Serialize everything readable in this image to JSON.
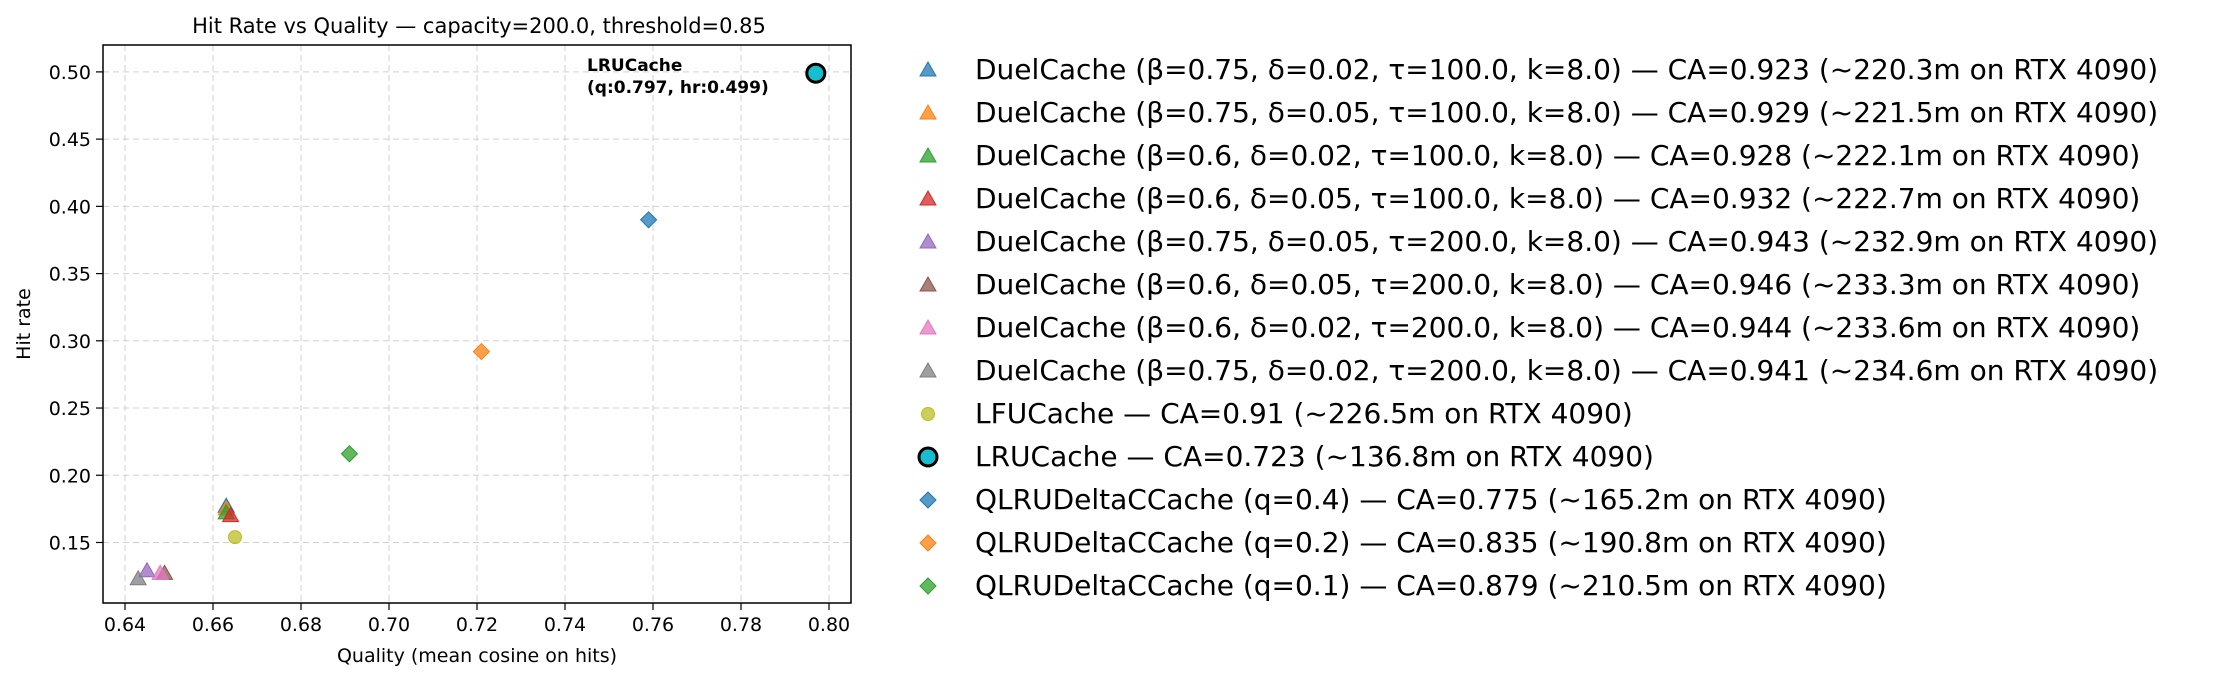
{
  "chart_data": {
    "type": "scatter",
    "title": "Hit Rate vs Quality — capacity=200.0, threshold=0.85",
    "xlabel": "Quality (mean cosine on hits)",
    "ylabel": "Hit rate",
    "xlim": [
      0.635,
      0.805
    ],
    "ylim": [
      0.105,
      0.52
    ],
    "xticks": [
      "0.64",
      "0.66",
      "0.68",
      "0.70",
      "0.72",
      "0.74",
      "0.76",
      "0.78",
      "0.80"
    ],
    "yticks": [
      "0.15",
      "0.20",
      "0.25",
      "0.30",
      "0.35",
      "0.40",
      "0.45",
      "0.50"
    ],
    "grid": true,
    "legend_position": "outside-right",
    "annotation": {
      "line1": "LRUCache",
      "line2": "(q:0.797, hr:0.499)"
    },
    "series": [
      {
        "name": "DuelCache (β=0.75, δ=0.02, τ=100.0, k=8.0) — CA=0.923 (~220.3m on RTX 4090)",
        "marker": "triangle",
        "color": "#1f77b4",
        "x": 0.663,
        "y": 0.177
      },
      {
        "name": "DuelCache (β=0.75, δ=0.05, τ=100.0, k=8.0) — CA=0.929 (~221.5m on RTX 4090)",
        "marker": "triangle",
        "color": "#ff7f0e",
        "x": 0.663,
        "y": 0.175
      },
      {
        "name": "DuelCache (β=0.6, δ=0.02, τ=100.0, k=8.0) — CA=0.928 (~222.1m on RTX 4090)",
        "marker": "triangle",
        "color": "#2ca02c",
        "x": 0.663,
        "y": 0.172
      },
      {
        "name": "DuelCache (β=0.6, δ=0.05, τ=100.0, k=8.0) — CA=0.932 (~222.7m on RTX 4090)",
        "marker": "triangle",
        "color": "#d62728",
        "x": 0.664,
        "y": 0.17
      },
      {
        "name": "DuelCache (β=0.75, δ=0.05, τ=200.0, k=8.0) — CA=0.943 (~232.9m on RTX 4090)",
        "marker": "triangle",
        "color": "#9467bd",
        "x": 0.645,
        "y": 0.129
      },
      {
        "name": "DuelCache (β=0.6, δ=0.05, τ=200.0, k=8.0) — CA=0.946 (~233.3m on RTX 4090)",
        "marker": "triangle",
        "color": "#8c564b",
        "x": 0.649,
        "y": 0.127
      },
      {
        "name": "DuelCache (β=0.6, δ=0.02, τ=200.0, k=8.0) — CA=0.944 (~233.6m on RTX 4090)",
        "marker": "triangle",
        "color": "#e377c2",
        "x": 0.648,
        "y": 0.127
      },
      {
        "name": "DuelCache (β=0.75, δ=0.02, τ=200.0, k=8.0) — CA=0.941 (~234.6m on RTX 4090)",
        "marker": "triangle",
        "color": "#7f7f7f",
        "x": 0.643,
        "y": 0.123
      },
      {
        "name": "LFUCache — CA=0.91 (~226.5m on RTX 4090)",
        "marker": "circle",
        "color": "#bcbd22",
        "x": 0.665,
        "y": 0.154
      },
      {
        "name": "LRUCache — CA=0.723 (~136.8m on RTX 4090)",
        "marker": "circle-big",
        "color": "#17becf",
        "x": 0.797,
        "y": 0.499
      },
      {
        "name": "QLRUDeltaCCache (q=0.4) — CA=0.775 (~165.2m on RTX 4090)",
        "marker": "diamond",
        "color": "#1f77b4",
        "x": 0.759,
        "y": 0.39
      },
      {
        "name": "QLRUDeltaCCache (q=0.2) — CA=0.835 (~190.8m on RTX 4090)",
        "marker": "diamond",
        "color": "#ff7f0e",
        "x": 0.721,
        "y": 0.292
      },
      {
        "name": "QLRUDeltaCCache (q=0.1) — CA=0.879 (~210.5m on RTX 4090)",
        "marker": "diamond",
        "color": "#2ca02c",
        "x": 0.691,
        "y": 0.216
      }
    ]
  }
}
